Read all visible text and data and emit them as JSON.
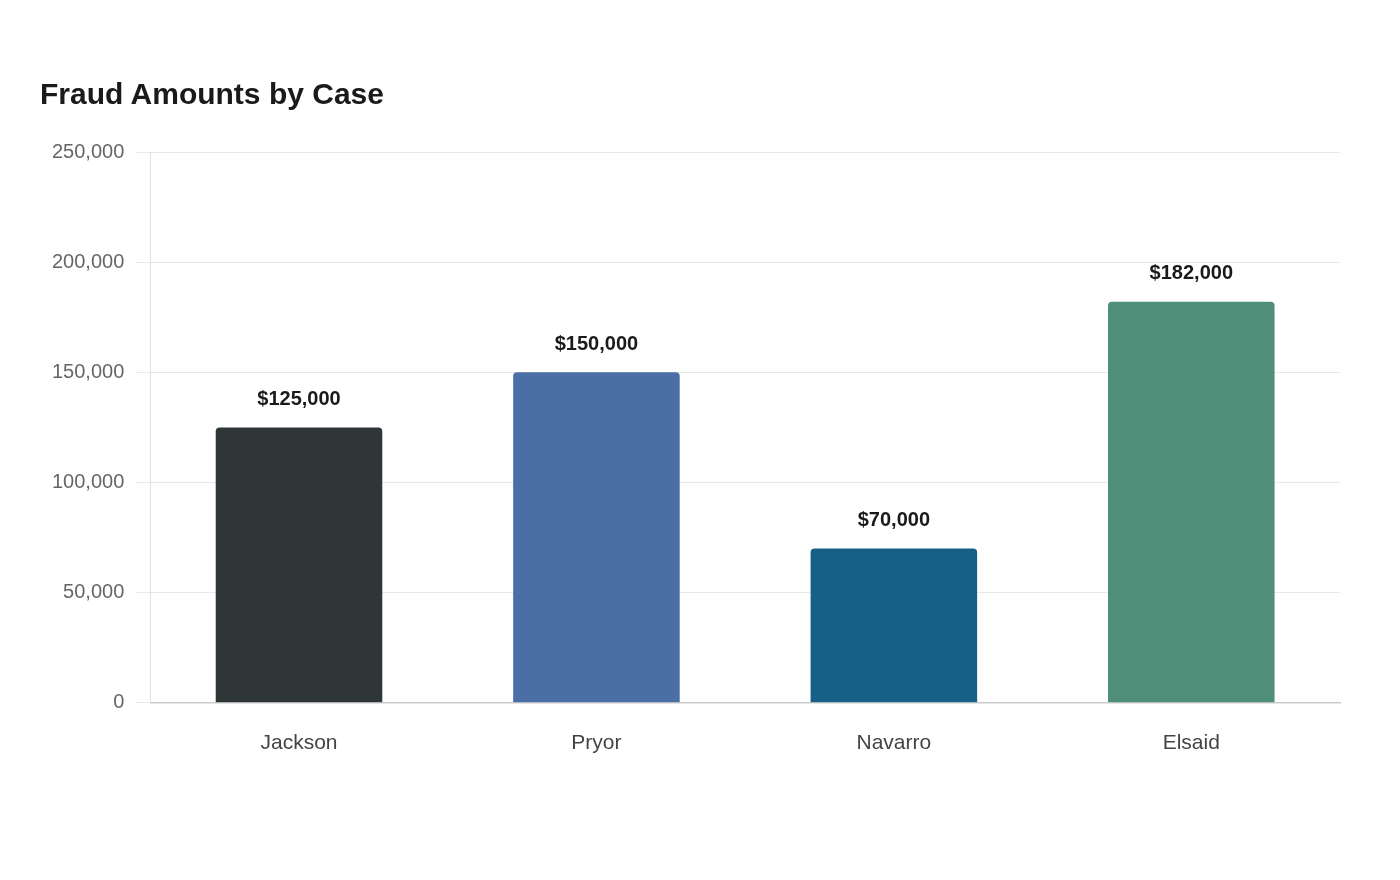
{
  "chart_data": {
    "type": "bar",
    "title": "Fraud Amounts by Case",
    "categories": [
      "Jackson",
      "Pryor",
      "Navarro",
      "Elsaid"
    ],
    "values": [
      125000,
      150000,
      70000,
      182000
    ],
    "colors": [
      "#2e3638",
      "#4a6fa5",
      "#166088",
      "#4f8f7a"
    ],
    "value_labels": [
      "$125,000",
      "$150,000",
      "$70,000",
      "$182,000"
    ],
    "ylim": [
      0,
      250000
    ],
    "yticks": [
      0,
      {
        "value": 50000,
        "label": "50,000"
      },
      {
        "value": 100000,
        "label": "100,000"
      },
      {
        "value": 150000,
        "label": "150,000"
      },
      {
        "value": 200000,
        "label": "200,000"
      },
      {
        "value": 250000,
        "label": "250,000"
      }
    ],
    "grid": "y",
    "legend": false
  }
}
